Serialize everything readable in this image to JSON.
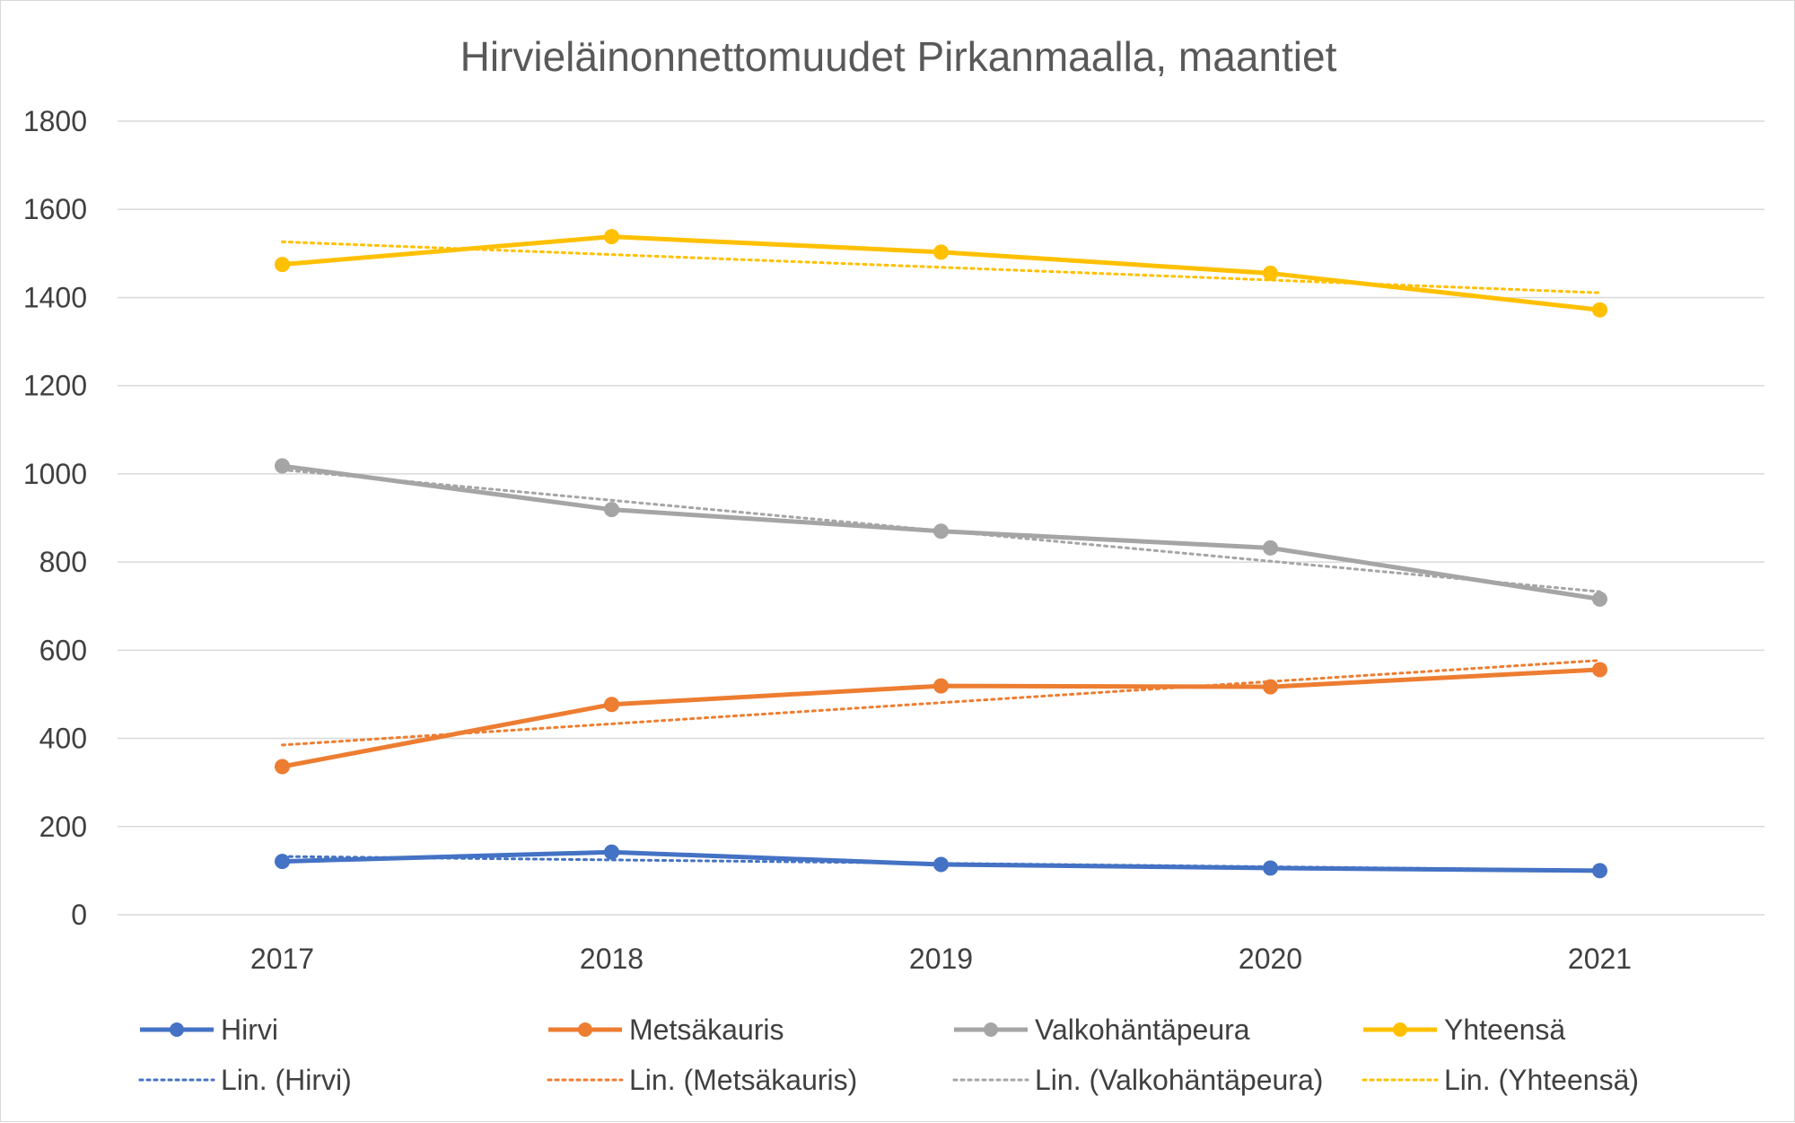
{
  "chart_data": {
    "type": "line",
    "title": "Hirvieläinonnettomuudet Pirkanmaalla, maantiet",
    "xlabel": "",
    "ylabel": "",
    "categories": [
      "2017",
      "2018",
      "2019",
      "2020",
      "2021"
    ],
    "ylim": [
      0,
      1800
    ],
    "yticks": [
      0,
      200,
      400,
      600,
      800,
      1000,
      1200,
      1400,
      1600,
      1800
    ],
    "grid": true,
    "legend_position": "bottom",
    "series": [
      {
        "name": "Hirvi",
        "color": "#4472C4",
        "values": [
          121,
          142,
          114,
          106,
          100
        ]
      },
      {
        "name": "Metsäkauris",
        "color": "#ED7D31",
        "values": [
          336,
          477,
          519,
          517,
          556
        ]
      },
      {
        "name": "Valkohäntäpeura",
        "color": "#A5A5A5",
        "values": [
          1018,
          919,
          870,
          832,
          716
        ]
      },
      {
        "name": "Yhteensä",
        "color": "#FFC000",
        "values": [
          1475,
          1538,
          1503,
          1455,
          1372
        ]
      }
    ],
    "trendlines": [
      {
        "name": "Lin. (Hirvi)",
        "color": "#4472C4",
        "type": "linear"
      },
      {
        "name": "Lin. (Metsäkauris)",
        "color": "#ED7D31",
        "type": "linear"
      },
      {
        "name": "Lin. (Valkohäntäpeura)",
        "color": "#A5A5A5",
        "type": "linear"
      },
      {
        "name": "Lin. (Yhteensä)",
        "color": "#FFC000",
        "type": "linear"
      }
    ]
  }
}
